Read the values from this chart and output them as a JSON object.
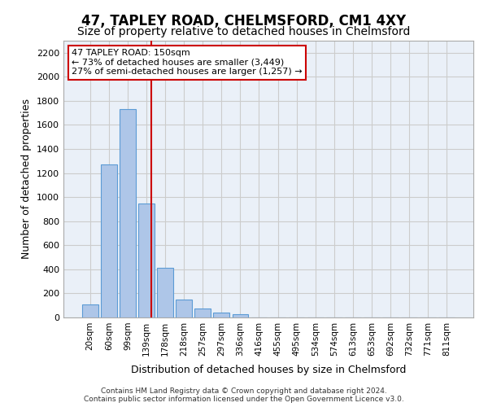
{
  "title1": "47, TAPLEY ROAD, CHELMSFORD, CM1 4XY",
  "title2": "Size of property relative to detached houses in Chelmsford",
  "xlabel": "Distribution of detached houses by size in Chelmsford",
  "ylabel": "Number of detached properties",
  "bin_labels": [
    "20sqm",
    "60sqm",
    "99sqm",
    "139sqm",
    "178sqm",
    "218sqm",
    "257sqm",
    "297sqm",
    "336sqm",
    "416sqm",
    "455sqm",
    "495sqm",
    "534sqm",
    "574sqm",
    "613sqm",
    "653sqm",
    "692sqm",
    "732sqm",
    "771sqm",
    "811sqm"
  ],
  "bar_values": [
    108,
    1270,
    1730,
    950,
    415,
    150,
    75,
    40,
    25,
    0,
    0,
    0,
    0,
    0,
    0,
    0,
    0,
    0,
    0,
    0
  ],
  "bar_color": "#aec6e8",
  "bar_edgecolor": "#5b9bd5",
  "annotation_line1": "47 TAPLEY ROAD: 150sqm",
  "annotation_line2": "← 73% of detached houses are smaller (3,449)",
  "annotation_line3": "27% of semi-detached houses are larger (1,257) →",
  "annotation_box_color": "#ffffff",
  "annotation_box_edgecolor": "#cc0000",
  "vline_color": "#cc0000",
  "vline_x": 3.282,
  "ylim": [
    0,
    2300
  ],
  "yticks": [
    0,
    200,
    400,
    600,
    800,
    1000,
    1200,
    1400,
    1600,
    1800,
    2000,
    2200
  ],
  "grid_color": "#cccccc",
  "bg_color": "#eaf0f8",
  "footer1": "Contains HM Land Registry data © Crown copyright and database right 2024.",
  "footer2": "Contains public sector information licensed under the Open Government Licence v3.0."
}
